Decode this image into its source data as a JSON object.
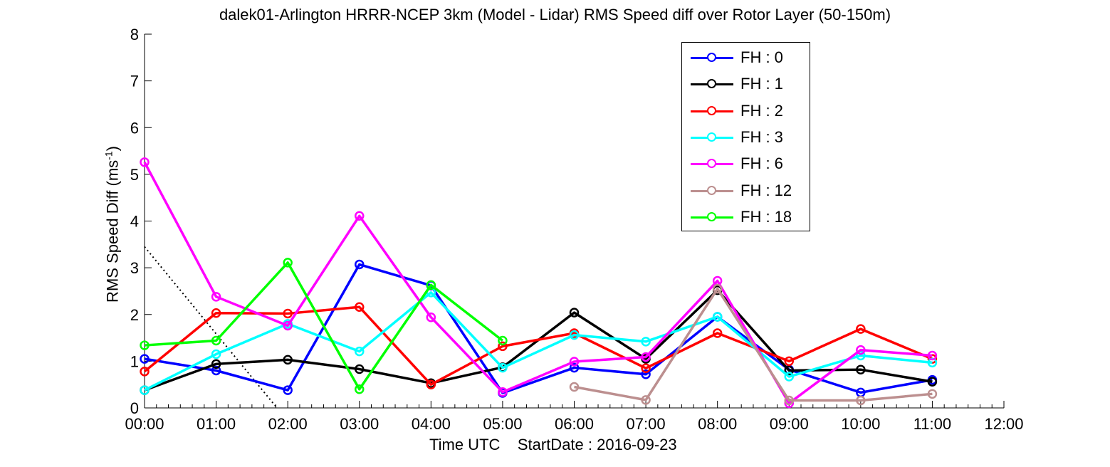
{
  "chart_data": {
    "type": "line",
    "title": "dalek01-Arlington HRRR-NCEP 3km (Model - Lidar) RMS Speed diff over Rotor Layer (50-150m)",
    "xlabel": "Time UTC    StartDate : 2016-09-23",
    "ylabel_main": "RMS Speed Diff (ms",
    "ylabel_sup": "-1",
    "ylabel_close": ")",
    "x_ticks": [
      "00:00",
      "01:00",
      "02:00",
      "03:00",
      "04:00",
      "05:00",
      "06:00",
      "07:00",
      "08:00",
      "09:00",
      "10:00",
      "11:00",
      "12:00"
    ],
    "y_ticks": [
      "0",
      "1",
      "2",
      "3",
      "4",
      "5",
      "6",
      "7",
      "8"
    ],
    "xlim": [
      0,
      12
    ],
    "ylim": [
      0,
      8
    ],
    "grid": false,
    "legend_position": "top-right",
    "series": [
      {
        "name": "FH : 0",
        "color": "#0000ff",
        "x": [
          0,
          1,
          2,
          3,
          4,
          5,
          6,
          7,
          8,
          9,
          10,
          11
        ],
        "y": [
          1.05,
          0.8,
          0.38,
          3.07,
          2.62,
          0.32,
          0.86,
          0.72,
          1.95,
          0.82,
          0.33,
          0.6
        ]
      },
      {
        "name": "FH : 1",
        "color": "#000000",
        "x": [
          0,
          1,
          2,
          3,
          4,
          5,
          6,
          7,
          8,
          9,
          10,
          11
        ],
        "y": [
          0.38,
          0.94,
          1.03,
          0.83,
          0.53,
          0.87,
          2.04,
          1.05,
          2.52,
          0.8,
          0.82,
          0.56
        ]
      },
      {
        "name": "FH : 2",
        "color": "#ff0000",
        "x": [
          0,
          1,
          2,
          3,
          4,
          5,
          6,
          7,
          8,
          9,
          10,
          11
        ],
        "y": [
          0.78,
          2.03,
          2.02,
          2.16,
          0.5,
          1.32,
          1.6,
          0.85,
          1.6,
          1.0,
          1.69,
          1.05
        ]
      },
      {
        "name": "FH : 3",
        "color": "#00ffff",
        "x": [
          0,
          1,
          2,
          3,
          4,
          5,
          6,
          7,
          8,
          9,
          10,
          11
        ],
        "y": [
          0.38,
          1.15,
          1.8,
          1.21,
          2.47,
          0.86,
          1.56,
          1.42,
          1.95,
          0.67,
          1.12,
          0.97
        ]
      },
      {
        "name": "FH : 6",
        "color": "#ff00ff",
        "x": [
          0,
          1,
          2,
          3,
          4,
          5,
          6,
          7,
          8,
          9,
          10,
          11
        ],
        "y": [
          5.26,
          2.38,
          1.76,
          4.11,
          1.94,
          0.34,
          0.99,
          1.09,
          2.72,
          0.1,
          1.24,
          1.12
        ]
      },
      {
        "name": "FH : 12",
        "color": "#bc8f8f",
        "x": [
          6,
          7,
          8,
          9,
          10,
          11
        ],
        "y": [
          0.45,
          0.17,
          2.55,
          0.16,
          0.16,
          0.3
        ]
      },
      {
        "name": "FH : 18",
        "color": "#00ff00",
        "x": [
          0,
          1,
          2,
          3,
          4,
          5
        ],
        "y": [
          1.34,
          1.44,
          3.11,
          0.4,
          2.63,
          1.44
        ]
      }
    ],
    "reference_line": {
      "style": "dotted",
      "color": "#000000",
      "x": [
        0,
        1.85
      ],
      "y": [
        3.45,
        0
      ]
    }
  }
}
